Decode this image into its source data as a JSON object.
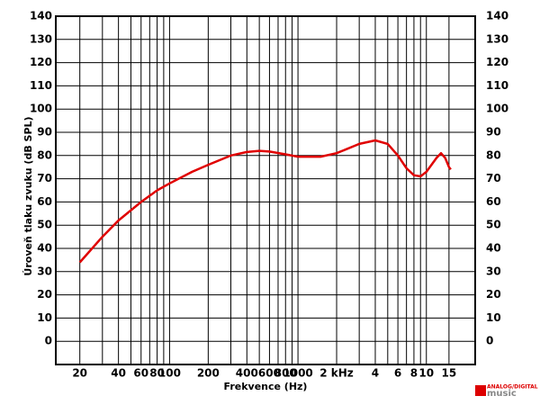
{
  "chart_data": {
    "type": "line",
    "y_label": "Úroveň tlaku zvuku (dB SPL)",
    "x_label": "Frekvence (Hz)",
    "logo": [
      "ANALOG/DIGITAL",
      "music"
    ],
    "x_log": true,
    "xlim": [
      13,
      24000
    ],
    "ylim": [
      -10,
      140
    ],
    "yticks": [
      0,
      10,
      20,
      30,
      40,
      50,
      60,
      70,
      80,
      90,
      100,
      110,
      120,
      130,
      140
    ],
    "xticks": [
      20,
      40,
      60,
      80,
      100,
      200,
      400,
      600,
      800,
      1000,
      {
        "value": 2000,
        "label": "2 kHz"
      },
      {
        "value": 4000,
        "label": "4"
      },
      {
        "value": 6000,
        "label": "6"
      },
      {
        "value": 8000,
        "label": "8"
      },
      {
        "value": 10000,
        "label": "10"
      },
      {
        "value": 15000,
        "label": "15"
      }
    ],
    "x_minor_grid": [
      30,
      50,
      70,
      90,
      300,
      500,
      700,
      900,
      3000,
      5000,
      7000,
      9000
    ],
    "grid": true,
    "x": [
      20,
      30,
      40,
      60,
      80,
      100,
      150,
      200,
      300,
      400,
      500,
      600,
      800,
      1000,
      1500,
      2000,
      3000,
      4000,
      5000,
      6000,
      7000,
      8000,
      9000,
      10000,
      12000,
      13000,
      14000,
      15000,
      15500
    ],
    "series": [
      {
        "color": "#e00000",
        "values": [
          34,
          45,
          52,
          60,
          65,
          68,
          73,
          76,
          80,
          81.5,
          82,
          81.7,
          80.5,
          79.5,
          79.5,
          81,
          85,
          86.5,
          85,
          80,
          74.5,
          71.5,
          71,
          73,
          79,
          81,
          79,
          75,
          74
        ]
      }
    ]
  }
}
